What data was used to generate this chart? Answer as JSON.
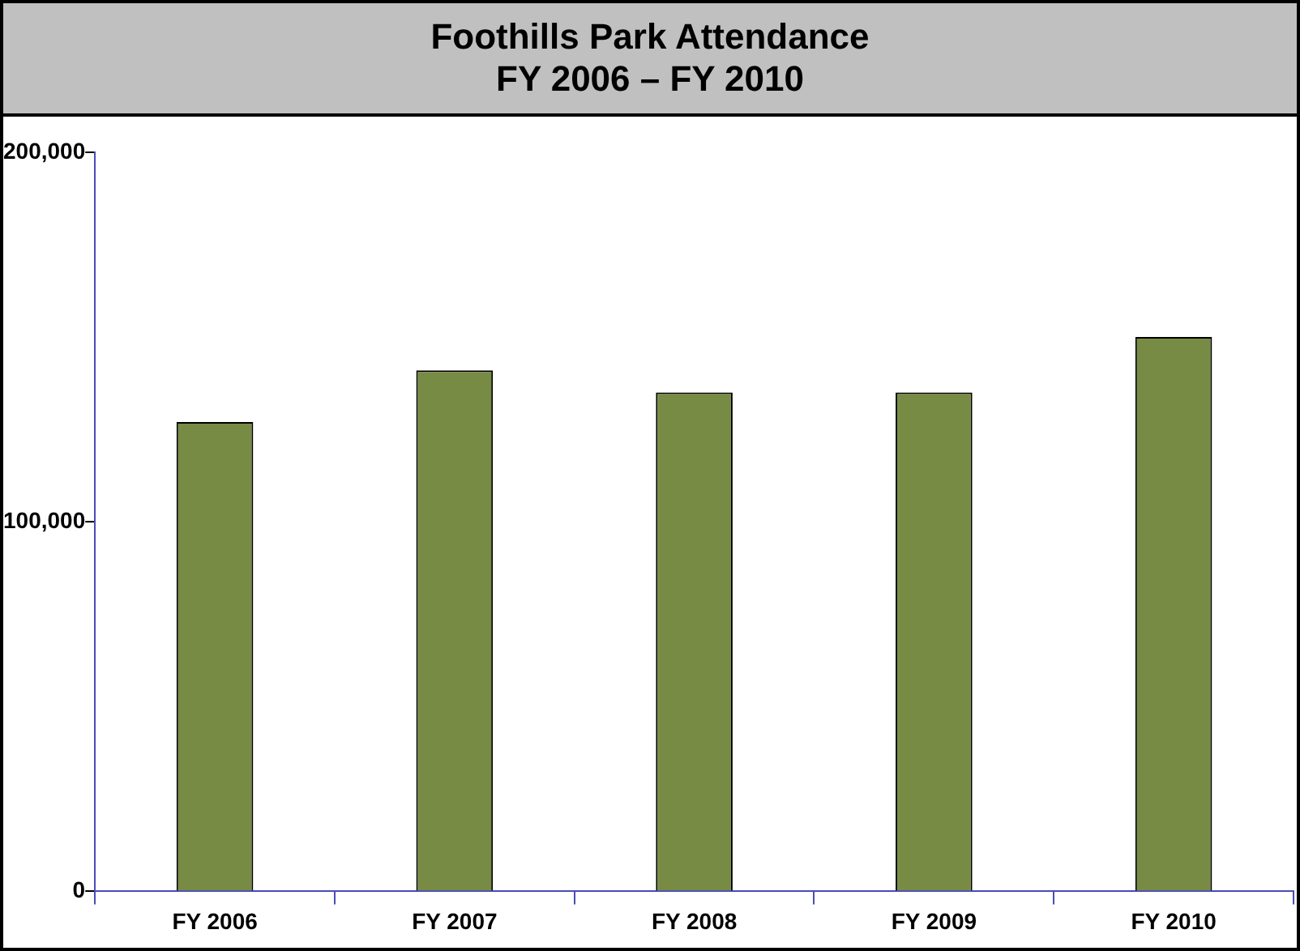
{
  "chart_data": {
    "type": "bar",
    "title": "Foothills Park Attendance",
    "subtitle": "FY 2006 – FY 2010",
    "categories": [
      "FY 2006",
      "FY 2007",
      "FY 2008",
      "FY 2009",
      "FY 2010"
    ],
    "values": [
      127000,
      141000,
      135000,
      135000,
      150000
    ],
    "color": "#778b45",
    "ylim": [
      0,
      200000
    ],
    "yticks": [
      {
        "value": 0,
        "label": "0"
      },
      {
        "value": 100000,
        "label": "100,000"
      },
      {
        "value": 200000,
        "label": "200,000"
      }
    ],
    "grid": false,
    "legend": false
  }
}
